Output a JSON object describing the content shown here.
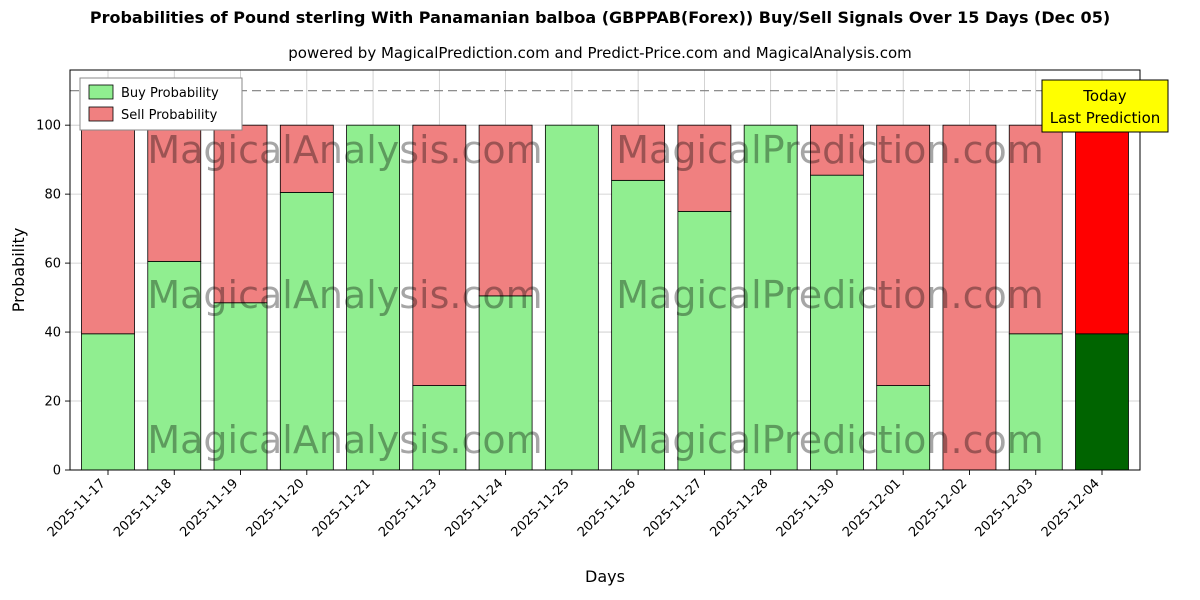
{
  "chart_data": {
    "type": "bar",
    "stacked": true,
    "title": "Probabilities of Pound sterling With Panamanian balboa (GBPPAB(Forex)) Buy/Sell Signals Over 15 Days (Dec 05)",
    "subtitle": "powered by MagicalPrediction.com and Predict-Price.com and MagicalAnalysis.com",
    "xlabel": "Days",
    "ylabel": "Probability",
    "ylim": [
      0,
      116
    ],
    "yticks": [
      0,
      20,
      40,
      60,
      80,
      100
    ],
    "grid": true,
    "dashed_guide_y": 110,
    "legend_position": "upper-left",
    "categories": [
      "2025-11-17",
      "2025-11-18",
      "2025-11-19",
      "2025-11-20",
      "2025-11-21",
      "2025-11-23",
      "2025-11-24",
      "2025-11-25",
      "2025-11-26",
      "2025-11-27",
      "2025-11-28",
      "2025-11-30",
      "2025-12-01",
      "2025-12-02",
      "2025-12-03",
      "2025-12-04"
    ],
    "series": [
      {
        "name": "Buy Probability",
        "color": "#90ee90",
        "values": [
          39.5,
          60.5,
          48.5,
          80.5,
          100,
          24.5,
          50.5,
          100,
          84,
          75,
          100,
          85.5,
          24.5,
          0,
          39.5,
          39.5
        ]
      },
      {
        "name": "Sell Probability",
        "color": "#f08080",
        "values": [
          60.5,
          39.5,
          51.5,
          19.5,
          0,
          75.5,
          49.5,
          0,
          16,
          25,
          0,
          14.5,
          75.5,
          100,
          60.5,
          60.5
        ]
      }
    ],
    "final_bar_colors": {
      "buy": "#006400",
      "sell": "#ff0000"
    },
    "annotation": {
      "line1": "Today",
      "line2": "Last Prediction",
      "bg_color": "#ffff00",
      "border_color": "#000000"
    },
    "watermarks": {
      "left": "MagicalAnalysis.com",
      "right": "MagicalPrediction.com"
    }
  }
}
